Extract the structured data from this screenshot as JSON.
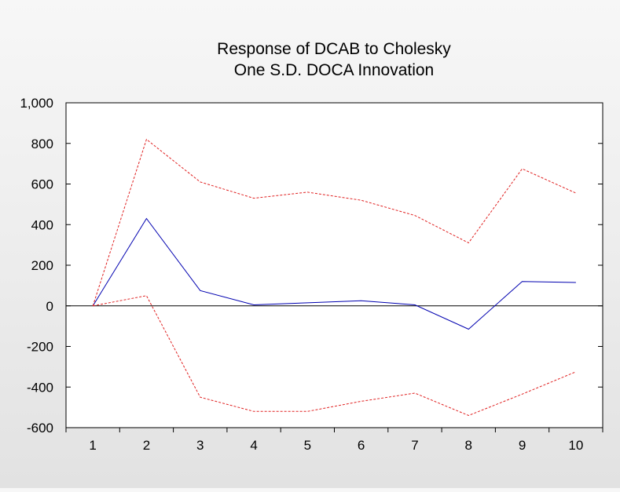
{
  "chart_data": {
    "type": "line",
    "title": [
      "Response of DCAB to Cholesky",
      "One S.D. DOCA Innovation"
    ],
    "xlabel": "",
    "ylabel": "",
    "categories": [
      "1",
      "2",
      "3",
      "4",
      "5",
      "6",
      "7",
      "8",
      "9",
      "10"
    ],
    "ylim": [
      -600,
      1000
    ],
    "yticks": [
      1000,
      800,
      600,
      400,
      200,
      0,
      -200,
      -400,
      -600
    ],
    "ytick_labels": [
      "1,000",
      "800",
      "600",
      "400",
      "200",
      "0",
      "-200",
      "-400",
      "-600"
    ],
    "zero_line": true,
    "grid": false,
    "legend": "none",
    "series": [
      {
        "role": "response",
        "color": "#0000b0",
        "style": "solid",
        "values": [
          0,
          430,
          75,
          5,
          15,
          25,
          5,
          -115,
          120,
          115
        ]
      },
      {
        "role": "upper band",
        "color": "#e02020",
        "style": "dashed",
        "values": [
          0,
          820,
          610,
          530,
          560,
          520,
          445,
          310,
          675,
          555
        ]
      },
      {
        "role": "lower band",
        "color": "#e02020",
        "style": "dashed",
        "values": [
          0,
          50,
          -450,
          -520,
          -520,
          -470,
          -430,
          -540,
          -435,
          -325
        ]
      }
    ]
  }
}
